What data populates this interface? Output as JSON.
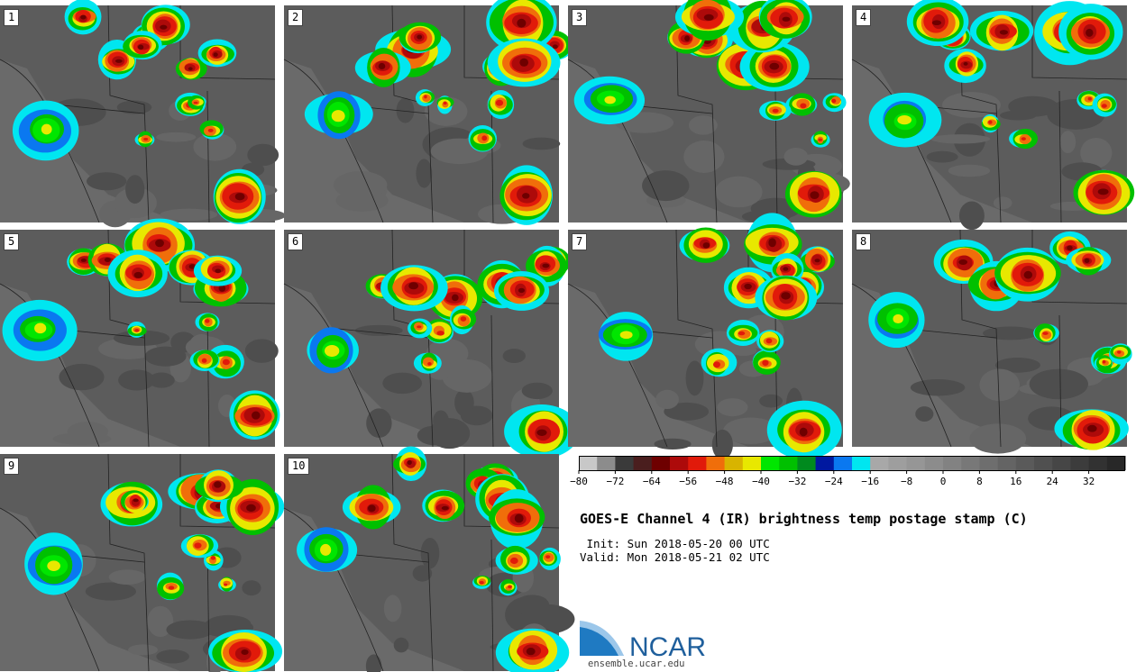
{
  "panels": [
    "1",
    "2",
    "3",
    "4",
    "5",
    "6",
    "7",
    "8",
    "9",
    "10"
  ],
  "title": "GOES-E Channel 4 (IR) brightness temp postage stamp (C)",
  "init": " Init: Sun 2018-05-20 00 UTC",
  "valid": "Valid: Mon 2018-05-21 02 UTC",
  "logo": {
    "name": "NCAR",
    "url": "ensemble.ucar.edu"
  },
  "chart_data": {
    "type": "heatmap",
    "title": "GOES-E Channel 4 (IR) brightness temp postage stamp (C)",
    "members": [
      "1",
      "2",
      "3",
      "4",
      "5",
      "6",
      "7",
      "8",
      "9",
      "10"
    ],
    "init_time": "Sun 2018-05-20 00 UTC",
    "valid_time": "Mon 2018-05-21 02 UTC",
    "colorbar": {
      "range": [
        -80,
        40
      ],
      "step": 4,
      "tick_labels": [
        "−80",
        "−72",
        "−64",
        "−56",
        "−48",
        "−40",
        "−32",
        "−24",
        "−16",
        "−8",
        "0",
        "8",
        "16",
        "24",
        "32"
      ],
      "colors": [
        "#c8c8c8",
        "#8c8c8c",
        "#3a3a3a",
        "#4a1e1e",
        "#6e0000",
        "#ad0a0a",
        "#e11a0a",
        "#f06e0a",
        "#d8b400",
        "#e8e800",
        "#00e600",
        "#00c000",
        "#008a1e",
        "#0018a0",
        "#0a78f0",
        "#00e6f0",
        "#a8a8a8",
        "#9e9e9e",
        "#969696",
        "#8c8c8c",
        "#828282",
        "#787878",
        "#6e6e6e",
        "#646464",
        "#5a5a5a",
        "#505050",
        "#464646",
        "#3c3c3c",
        "#323232",
        "#282828"
      ]
    }
  }
}
